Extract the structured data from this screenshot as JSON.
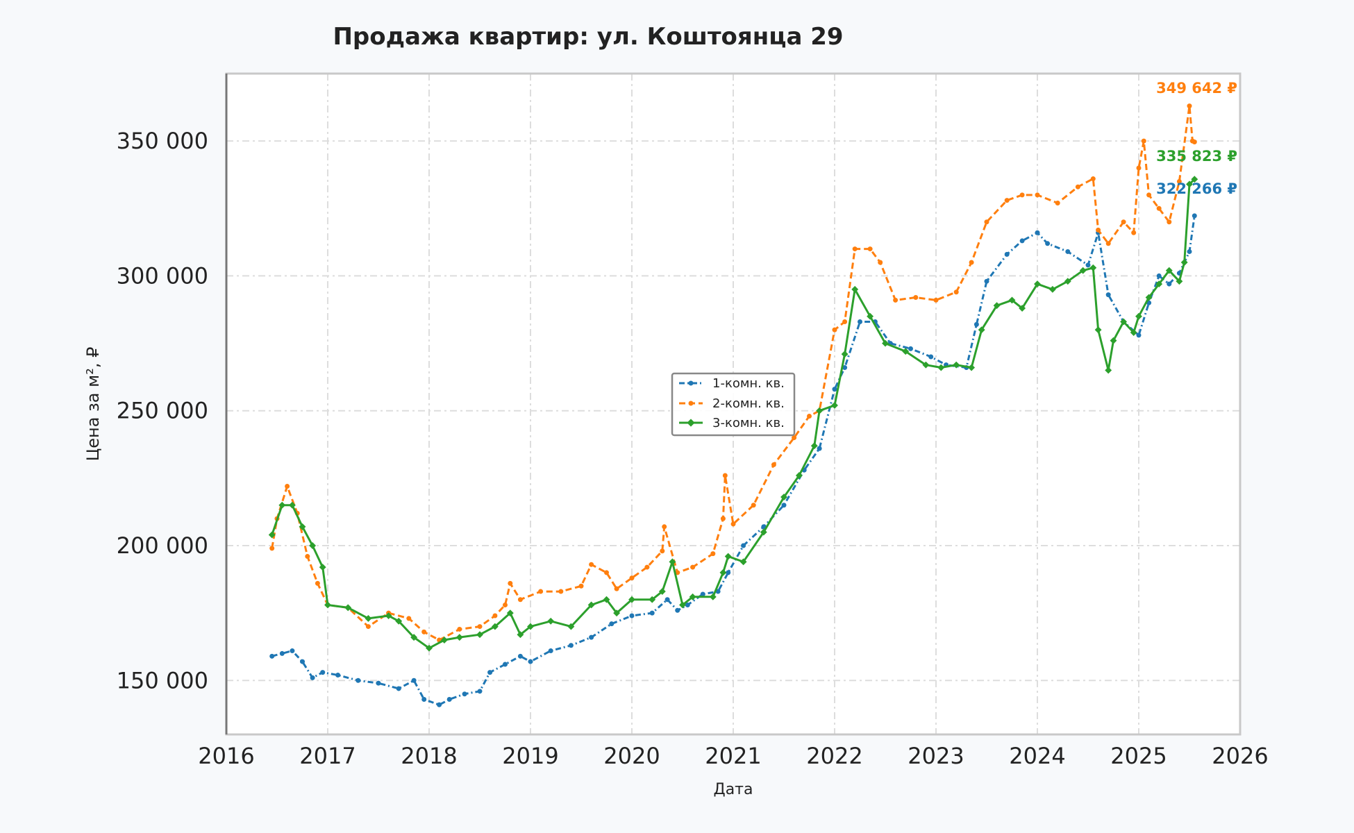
{
  "chart_data": {
    "type": "line",
    "title": "Продажа квартир: ул. Коштоянца 29",
    "xlabel": "Дата",
    "ylabel": "Цена за м², ₽",
    "xlim": [
      2016,
      2026
    ],
    "ylim": [
      130000,
      375000
    ],
    "x_ticks": [
      2016,
      2017,
      2018,
      2019,
      2020,
      2021,
      2022,
      2023,
      2024,
      2025,
      2026
    ],
    "x_tick_labels": [
      "2016",
      "2017",
      "2018",
      "2019",
      "2020",
      "2021",
      "2022",
      "2023",
      "2024",
      "2025",
      "2026"
    ],
    "y_ticks": [
      150000,
      200000,
      250000,
      300000,
      350000
    ],
    "y_tick_labels": [
      "150 000",
      "200 000",
      "250 000",
      "300 000",
      "350 000"
    ],
    "grid": true,
    "legend_position": "center",
    "series": [
      {
        "name": "1-комн. кв.",
        "color": "#1f77b4",
        "x": [
          2016.45,
          2016.55,
          2016.65,
          2016.75,
          2016.85,
          2016.95,
          2017.1,
          2017.3,
          2017.5,
          2017.7,
          2017.85,
          2017.95,
          2018.1,
          2018.2,
          2018.35,
          2018.5,
          2018.6,
          2018.75,
          2018.9,
          2019.0,
          2019.2,
          2019.4,
          2019.6,
          2019.8,
          2020.0,
          2020.2,
          2020.35,
          2020.45,
          2020.55,
          2020.7,
          2020.85,
          2020.95,
          2021.1,
          2021.3,
          2021.5,
          2021.7,
          2021.85,
          2022.0,
          2022.1,
          2022.25,
          2022.4,
          2022.55,
          2022.75,
          2022.95,
          2023.1,
          2023.3,
          2023.4,
          2023.5,
          2023.7,
          2023.85,
          2024.0,
          2024.1,
          2024.3,
          2024.5,
          2024.6,
          2024.7,
          2024.85,
          2025.0,
          2025.1,
          2025.2,
          2025.3,
          2025.4,
          2025.5,
          2025.55
        ],
        "y": [
          159000,
          160000,
          161000,
          157000,
          151000,
          153000,
          152000,
          150000,
          149000,
          147000,
          150000,
          143000,
          141000,
          143000,
          145000,
          146000,
          153000,
          156000,
          159000,
          157000,
          161000,
          163000,
          166000,
          171000,
          174000,
          175000,
          180000,
          176000,
          178000,
          182000,
          183000,
          190000,
          200000,
          207000,
          215000,
          228000,
          236000,
          258000,
          266000,
          283000,
          283000,
          275000,
          273000,
          270000,
          267000,
          266000,
          282000,
          298000,
          308000,
          313000,
          316000,
          312000,
          309000,
          304000,
          316000,
          293000,
          283000,
          278000,
          290000,
          300000,
          297000,
          301000,
          309000,
          322266
        ]
      },
      {
        "name": "2-комн. кв.",
        "color": "#ff7f0e",
        "x": [
          2016.45,
          2016.5,
          2016.6,
          2016.7,
          2016.8,
          2016.9,
          2017.0,
          2017.2,
          2017.4,
          2017.6,
          2017.8,
          2017.95,
          2018.1,
          2018.3,
          2018.5,
          2018.65,
          2018.75,
          2018.8,
          2018.9,
          2019.1,
          2019.3,
          2019.5,
          2019.6,
          2019.75,
          2019.85,
          2020.0,
          2020.15,
          2020.3,
          2020.32,
          2020.45,
          2020.6,
          2020.8,
          2020.9,
          2020.92,
          2021.0,
          2021.2,
          2021.4,
          2021.6,
          2021.75,
          2021.85,
          2022.0,
          2022.1,
          2022.2,
          2022.35,
          2022.45,
          2022.6,
          2022.8,
          2023.0,
          2023.2,
          2023.35,
          2023.5,
          2023.7,
          2023.85,
          2024.0,
          2024.2,
          2024.4,
          2024.55,
          2024.6,
          2024.7,
          2024.85,
          2024.95,
          2025.0,
          2025.05,
          2025.1,
          2025.2,
          2025.3,
          2025.4,
          2025.5,
          2025.53,
          2025.55
        ],
        "y": [
          199000,
          210000,
          222000,
          212000,
          196000,
          186000,
          178000,
          177000,
          170000,
          175000,
          173000,
          168000,
          165000,
          169000,
          170000,
          174000,
          178000,
          186000,
          180000,
          183000,
          183000,
          185000,
          193000,
          190000,
          184000,
          188000,
          192000,
          198000,
          207000,
          190000,
          192000,
          197000,
          210000,
          226000,
          208000,
          215000,
          230000,
          240000,
          248000,
          250000,
          280000,
          283000,
          310000,
          310000,
          305000,
          291000,
          292000,
          291000,
          294000,
          305000,
          320000,
          328000,
          330000,
          330000,
          327000,
          333000,
          336000,
          317000,
          312000,
          320000,
          316000,
          340000,
          350000,
          330000,
          325000,
          320000,
          335000,
          363000,
          350000,
          349642
        ]
      },
      {
        "name": "3-комн. кв.",
        "color": "#2ca02c",
        "x": [
          2016.45,
          2016.55,
          2016.65,
          2016.75,
          2016.85,
          2016.95,
          2017.0,
          2017.2,
          2017.4,
          2017.6,
          2017.7,
          2017.85,
          2018.0,
          2018.15,
          2018.3,
          2018.5,
          2018.65,
          2018.8,
          2018.9,
          2019.0,
          2019.2,
          2019.4,
          2019.6,
          2019.75,
          2019.85,
          2020.0,
          2020.2,
          2020.3,
          2020.4,
          2020.5,
          2020.6,
          2020.8,
          2020.9,
          2020.95,
          2021.1,
          2021.3,
          2021.5,
          2021.65,
          2021.8,
          2021.85,
          2022.0,
          2022.1,
          2022.2,
          2022.35,
          2022.5,
          2022.7,
          2022.9,
          2023.05,
          2023.2,
          2023.35,
          2023.45,
          2023.6,
          2023.75,
          2023.85,
          2024.0,
          2024.15,
          2024.3,
          2024.45,
          2024.55,
          2024.6,
          2024.7,
          2024.75,
          2024.85,
          2024.95,
          2025.0,
          2025.1,
          2025.2,
          2025.3,
          2025.4,
          2025.45,
          2025.5,
          2025.55
        ],
        "y": [
          204000,
          215000,
          215000,
          207000,
          200000,
          192000,
          178000,
          177000,
          173000,
          174000,
          172000,
          166000,
          162000,
          165000,
          166000,
          167000,
          170000,
          175000,
          167000,
          170000,
          172000,
          170000,
          178000,
          180000,
          175000,
          180000,
          180000,
          183000,
          194000,
          178000,
          181000,
          181000,
          190000,
          196000,
          194000,
          205000,
          218000,
          226000,
          237000,
          250000,
          252000,
          271000,
          295000,
          285000,
          275000,
          272000,
          267000,
          266000,
          267000,
          266000,
          280000,
          289000,
          291000,
          288000,
          297000,
          295000,
          298000,
          302000,
          303000,
          280000,
          265000,
          276000,
          283000,
          279000,
          285000,
          292000,
          297000,
          302000,
          298000,
          305000,
          334000,
          335823
        ]
      }
    ],
    "annotations": [
      {
        "series": "2-комн. кв.",
        "text": "349 642 ₽",
        "color": "#ff7f0e"
      },
      {
        "series": "3-комн. кв.",
        "text": "335 823 ₽",
        "color": "#2ca02c"
      },
      {
        "series": "1-комн. кв.",
        "text": "322 266 ₽",
        "color": "#1f77b4"
      }
    ]
  }
}
